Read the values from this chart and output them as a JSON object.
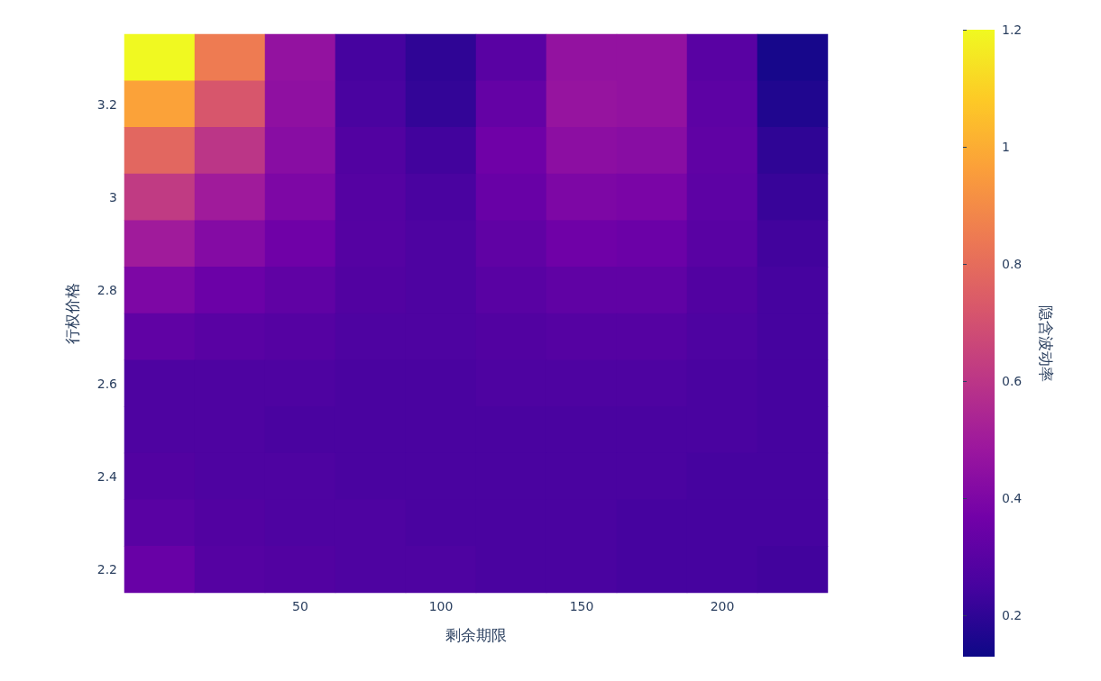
{
  "chart_data": {
    "type": "heatmap",
    "xlabel": "剩余期限",
    "ylabel": "行权价格",
    "clabel": "隐含波动率",
    "categories": [
      null,
      null,
      "50",
      null,
      "100",
      null,
      "150",
      null,
      "200",
      null
    ],
    "y_categories": [
      null,
      "3.2",
      null,
      "3",
      null,
      "2.8",
      null,
      "2.6",
      null,
      "2.4",
      null,
      "2.2"
    ],
    "cells": [
      [
        1.2,
        0.85,
        0.46,
        0.25,
        0.2,
        0.3,
        0.46,
        0.46,
        0.3,
        0.15
      ],
      [
        0.97,
        0.72,
        0.45,
        0.26,
        0.21,
        0.33,
        0.47,
        0.46,
        0.31,
        0.17
      ],
      [
        0.78,
        0.6,
        0.43,
        0.28,
        0.24,
        0.36,
        0.44,
        0.43,
        0.32,
        0.2
      ],
      [
        0.62,
        0.5,
        0.4,
        0.29,
        0.26,
        0.34,
        0.4,
        0.39,
        0.31,
        0.22
      ],
      [
        0.5,
        0.42,
        0.36,
        0.29,
        0.27,
        0.32,
        0.36,
        0.35,
        0.3,
        0.24
      ],
      [
        0.4,
        0.35,
        0.32,
        0.28,
        0.27,
        0.3,
        0.32,
        0.32,
        0.28,
        0.25
      ],
      [
        0.32,
        0.3,
        0.29,
        0.27,
        0.27,
        0.28,
        0.29,
        0.29,
        0.27,
        0.25
      ],
      [
        0.27,
        0.27,
        0.27,
        0.26,
        0.26,
        0.27,
        0.27,
        0.27,
        0.26,
        0.25
      ],
      [
        0.27,
        0.27,
        0.26,
        0.26,
        0.26,
        0.26,
        0.26,
        0.26,
        0.26,
        0.25
      ],
      [
        0.28,
        0.27,
        0.27,
        0.26,
        0.26,
        0.26,
        0.26,
        0.26,
        0.25,
        0.25
      ],
      [
        0.3,
        0.28,
        0.27,
        0.27,
        0.26,
        0.26,
        0.26,
        0.25,
        0.25,
        0.25
      ],
      [
        0.34,
        0.29,
        0.28,
        0.27,
        0.27,
        0.26,
        0.26,
        0.25,
        0.25,
        0.24
      ]
    ],
    "clim": [
      0.13,
      1.2
    ],
    "cticks": [
      0.2,
      0.4,
      0.6,
      0.8,
      1,
      1.2
    ]
  }
}
